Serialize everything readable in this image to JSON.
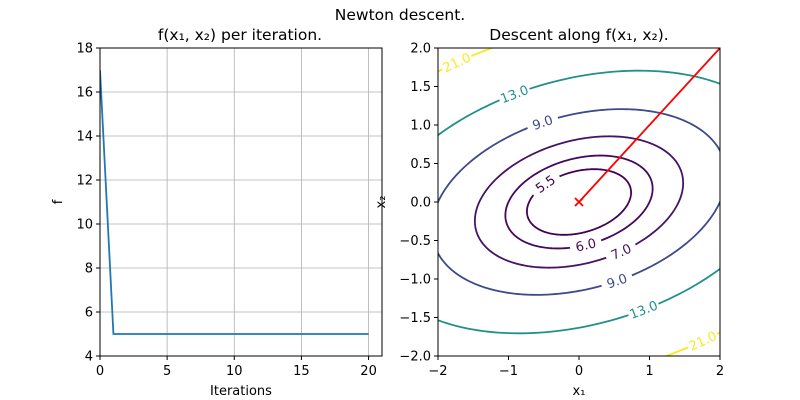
{
  "suptitle": "Newton descent.",
  "chart_data": [
    {
      "type": "line",
      "title": "f(x₁, x₂) per iteration.",
      "xlabel": "Iterations",
      "ylabel": "f",
      "xlim": [
        0,
        21
      ],
      "ylim": [
        4,
        18
      ],
      "xticks": [
        0,
        5,
        10,
        15,
        20
      ],
      "yticks": [
        4,
        6,
        8,
        10,
        12,
        14,
        16,
        18
      ],
      "grid": true,
      "series": [
        {
          "color": "#1f77b4",
          "x": [
            0,
            1,
            2,
            3,
            4,
            5,
            6,
            7,
            8,
            9,
            10,
            11,
            12,
            13,
            14,
            15,
            16,
            17,
            18,
            19,
            20
          ],
          "y": [
            17.0,
            5.0,
            5.0,
            5.0,
            5.0,
            5.0,
            5.0,
            5.0,
            5.0,
            5.0,
            5.0,
            5.0,
            5.0,
            5.0,
            5.0,
            5.0,
            5.0,
            5.0,
            5.0,
            5.0,
            5.0
          ]
        }
      ]
    },
    {
      "type": "contour",
      "title": "Descent along f(x₁, x₂).",
      "xlabel": "x₁",
      "ylabel": "x₂",
      "xlim": [
        -2,
        2
      ],
      "ylim": [
        -2,
        2
      ],
      "xticks": [
        -2,
        -1,
        0,
        1,
        2
      ],
      "yticks": [
        -2.0,
        -1.5,
        -1.0,
        -0.5,
        0.0,
        0.5,
        1.0,
        1.5,
        2.0
      ],
      "grid": false,
      "function": "f = 5 + x1^2 - x1*x2 + 3*x2^2",
      "levels": [
        {
          "value": 5.5,
          "label": "5.5",
          "color": "#440154"
        },
        {
          "value": 6.0,
          "label": "6.0",
          "color": "#46085c"
        },
        {
          "value": 7.0,
          "label": "7.0",
          "color": "#471365"
        },
        {
          "value": 9.0,
          "label": "9.0",
          "color": "#3e4a89"
        },
        {
          "value": 13.0,
          "label": "13.0",
          "color": "#21908d"
        },
        {
          "value": 21.0,
          "label": "21.0",
          "color": "#fde725"
        }
      ],
      "descent_path": {
        "color": "#ff0000",
        "x": [
          2.0,
          0.0,
          0.0
        ],
        "y": [
          2.0,
          0.0,
          0.0
        ]
      },
      "minimum_marker": {
        "x": 0.0,
        "y": 0.0,
        "symbol": "x",
        "color": "#ff0000"
      }
    }
  ]
}
